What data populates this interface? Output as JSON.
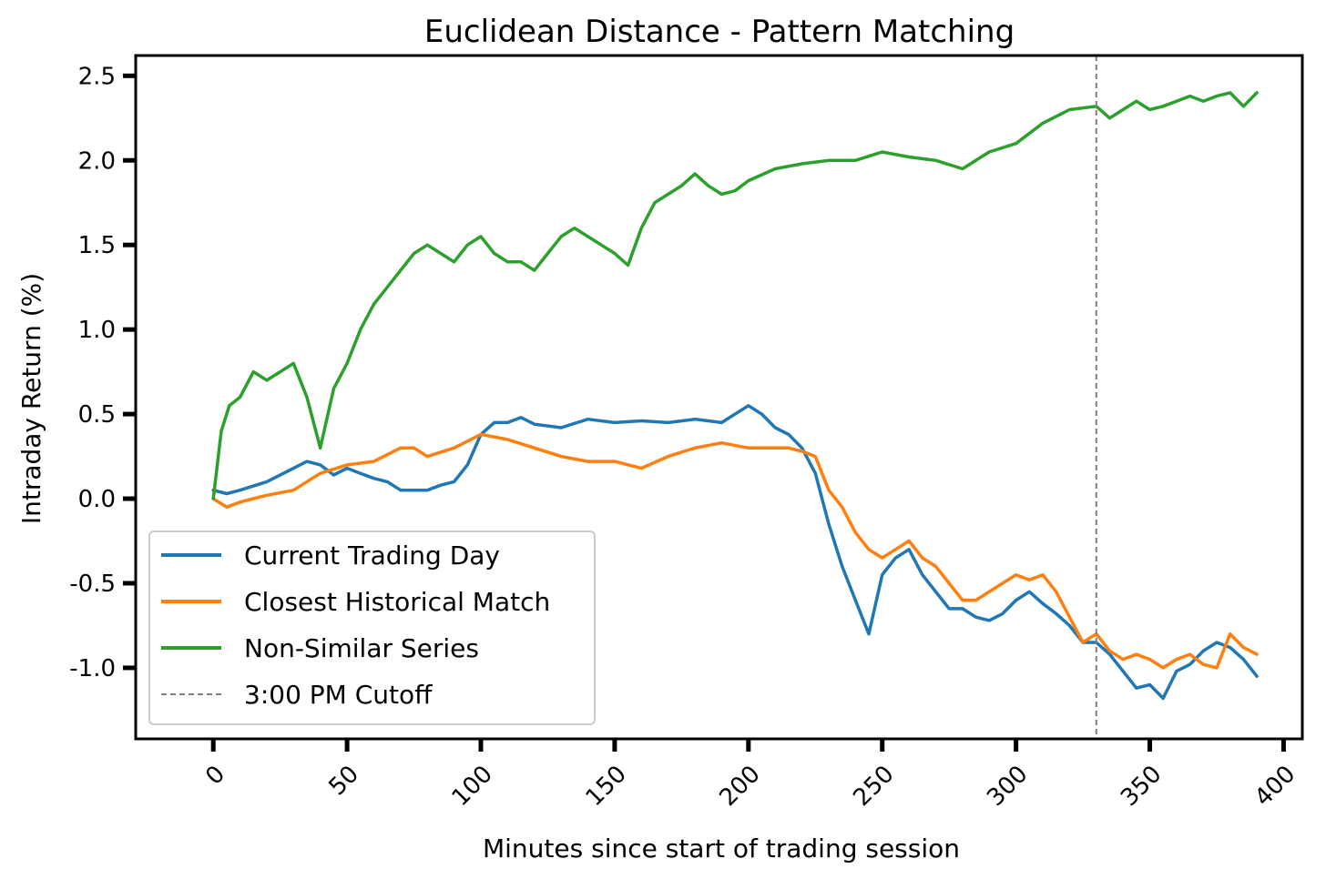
{
  "chart_data": {
    "type": "line",
    "title": "Euclidean Distance - Pattern Matching",
    "xlabel": "Minutes since start of trading session",
    "ylabel": "Intraday Return (%)",
    "xlim": [
      -29,
      407
    ],
    "ylim": [
      -1.42,
      2.62
    ],
    "xticks": [
      0,
      50,
      100,
      150,
      200,
      250,
      300,
      350,
      400
    ],
    "xtick_labels": [
      "0",
      "50",
      "100",
      "150",
      "200",
      "250",
      "300",
      "350",
      "400"
    ],
    "yticks": [
      -1.0,
      -0.5,
      0.0,
      0.5,
      1.0,
      1.5,
      2.0,
      2.5
    ],
    "ytick_labels": [
      "-1.0",
      "-0.5",
      "0.0",
      "0.5",
      "1.0",
      "1.5",
      "2.0",
      "2.5"
    ],
    "grid": false,
    "legend_position": "lower-left",
    "series": [
      {
        "name": "Current Trading Day",
        "color": "#1f77b4",
        "x": [
          0,
          5,
          10,
          20,
          30,
          35,
          40,
          45,
          50,
          55,
          60,
          65,
          70,
          75,
          80,
          85,
          90,
          95,
          100,
          105,
          110,
          115,
          120,
          130,
          140,
          150,
          160,
          170,
          180,
          190,
          200,
          205,
          210,
          215,
          220,
          225,
          230,
          235,
          240,
          245,
          250,
          255,
          260,
          265,
          270,
          275,
          280,
          285,
          290,
          295,
          300,
          305,
          310,
          315,
          320,
          325,
          330,
          335,
          340,
          345,
          350,
          355,
          360,
          365,
          370,
          375,
          380,
          385,
          390
        ],
        "y": [
          0.05,
          0.03,
          0.05,
          0.1,
          0.18,
          0.22,
          0.2,
          0.14,
          0.18,
          0.15,
          0.12,
          0.1,
          0.05,
          0.05,
          0.05,
          0.08,
          0.1,
          0.2,
          0.38,
          0.45,
          0.45,
          0.48,
          0.44,
          0.42,
          0.47,
          0.45,
          0.46,
          0.45,
          0.47,
          0.45,
          0.55,
          0.5,
          0.42,
          0.38,
          0.3,
          0.15,
          -0.15,
          -0.4,
          -0.6,
          -0.8,
          -0.45,
          -0.35,
          -0.3,
          -0.45,
          -0.55,
          -0.65,
          -0.65,
          -0.7,
          -0.72,
          -0.68,
          -0.6,
          -0.55,
          -0.62,
          -0.68,
          -0.75,
          -0.85,
          -0.85,
          -0.92,
          -1.02,
          -1.12,
          -1.1,
          -1.18,
          -1.02,
          -0.98,
          -0.9,
          -0.85,
          -0.88,
          -0.95,
          -1.05
        ]
      },
      {
        "name": "Closest Historical Match",
        "color": "#ff7f0e",
        "x": [
          0,
          5,
          10,
          15,
          20,
          30,
          40,
          50,
          60,
          70,
          75,
          80,
          90,
          100,
          110,
          120,
          130,
          140,
          150,
          160,
          170,
          180,
          190,
          200,
          210,
          215,
          220,
          225,
          230,
          235,
          240,
          245,
          250,
          255,
          260,
          265,
          270,
          275,
          280,
          285,
          290,
          295,
          300,
          305,
          310,
          315,
          320,
          325,
          330,
          335,
          340,
          345,
          350,
          355,
          360,
          365,
          370,
          375,
          380,
          385,
          390
        ],
        "y": [
          0.0,
          -0.05,
          -0.02,
          0.0,
          0.02,
          0.05,
          0.15,
          0.2,
          0.22,
          0.3,
          0.3,
          0.25,
          0.3,
          0.38,
          0.35,
          0.3,
          0.25,
          0.22,
          0.22,
          0.18,
          0.25,
          0.3,
          0.33,
          0.3,
          0.3,
          0.3,
          0.28,
          0.25,
          0.05,
          -0.05,
          -0.2,
          -0.3,
          -0.35,
          -0.3,
          -0.25,
          -0.35,
          -0.4,
          -0.5,
          -0.6,
          -0.6,
          -0.55,
          -0.5,
          -0.45,
          -0.48,
          -0.45,
          -0.55,
          -0.7,
          -0.85,
          -0.8,
          -0.9,
          -0.95,
          -0.92,
          -0.95,
          -1.0,
          -0.95,
          -0.92,
          -0.98,
          -1.0,
          -0.8,
          -0.88,
          -0.92
        ]
      },
      {
        "name": "Non-Similar Series",
        "color": "#2ca02c",
        "x": [
          0,
          3,
          6,
          10,
          15,
          20,
          25,
          30,
          35,
          40,
          45,
          50,
          55,
          60,
          65,
          70,
          75,
          80,
          85,
          90,
          95,
          100,
          105,
          110,
          115,
          120,
          125,
          130,
          135,
          140,
          145,
          150,
          155,
          160,
          165,
          170,
          175,
          180,
          185,
          190,
          195,
          200,
          210,
          220,
          230,
          240,
          250,
          260,
          270,
          280,
          290,
          300,
          310,
          320,
          330,
          335,
          340,
          345,
          350,
          355,
          360,
          365,
          370,
          375,
          380,
          385,
          390
        ],
        "y": [
          0.0,
          0.4,
          0.55,
          0.6,
          0.75,
          0.7,
          0.75,
          0.8,
          0.6,
          0.3,
          0.65,
          0.8,
          1.0,
          1.15,
          1.25,
          1.35,
          1.45,
          1.5,
          1.45,
          1.4,
          1.5,
          1.55,
          1.45,
          1.4,
          1.4,
          1.35,
          1.45,
          1.55,
          1.6,
          1.55,
          1.5,
          1.45,
          1.38,
          1.6,
          1.75,
          1.8,
          1.85,
          1.92,
          1.85,
          1.8,
          1.82,
          1.88,
          1.95,
          1.98,
          2.0,
          2.0,
          2.05,
          2.02,
          2.0,
          1.95,
          2.05,
          2.1,
          2.22,
          2.3,
          2.32,
          2.25,
          2.3,
          2.35,
          2.3,
          2.32,
          2.35,
          2.38,
          2.35,
          2.38,
          2.4,
          2.32,
          2.4
        ]
      }
    ],
    "reference_lines": [
      {
        "name": "3:00 PM Cutoff",
        "x": 330,
        "color": "#808080",
        "style": "dashed"
      }
    ]
  }
}
